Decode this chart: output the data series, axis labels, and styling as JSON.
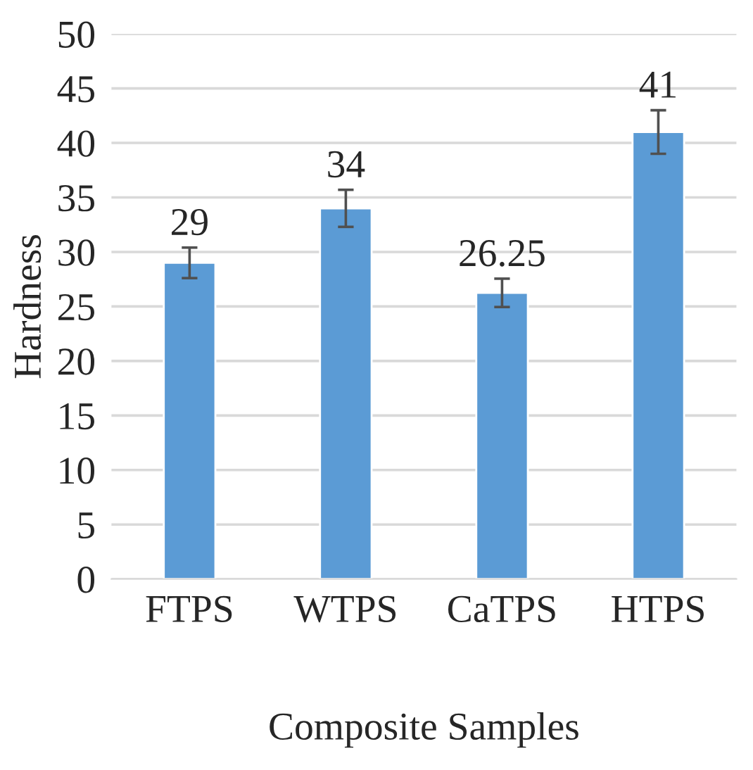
{
  "chart_data": {
    "type": "bar",
    "xlabel": "Composite Samples",
    "ylabel": "Hardness",
    "categories": [
      "FTPS",
      "WTPS",
      "CaTPS",
      "HTPS"
    ],
    "values": [
      29,
      34,
      26.25,
      41
    ],
    "errors": [
      1.4,
      1.7,
      1.3,
      2
    ],
    "color": "#5b9bd5",
    "ylim": [
      0,
      50
    ],
    "yticks": [
      0,
      5,
      10,
      15,
      20,
      25,
      30,
      35,
      40,
      45,
      50
    ],
    "grid": "y",
    "data_labels": true
  }
}
